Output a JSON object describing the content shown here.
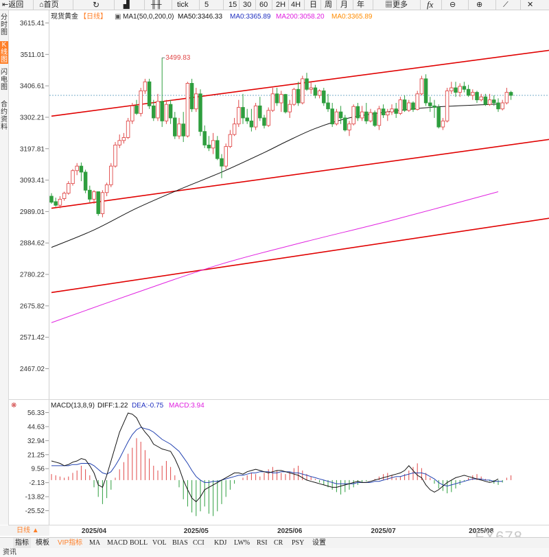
{
  "toolbar": {
    "back": "返回",
    "home": "首页",
    "period_5": "5",
    "period_15": "15",
    "period_30": "30",
    "period_60": "60",
    "period_2h": "2H",
    "period_4h": "4H",
    "day": "日",
    "week": "周",
    "month": "月",
    "year": "年",
    "more": "更多",
    "tick": "tick"
  },
  "sidebar": {
    "tab1": "分时图",
    "tab2": "K线图",
    "tab3": "闪电图",
    "tab4": "合约资料"
  },
  "header": {
    "symbol": "现货黄金",
    "period": "【日线】",
    "ma_params": "MA1(50,0,200,0)",
    "ma50": "MA50:3346.33",
    "ma0a": "MA0:3365.89",
    "ma200": "MA200:3058.20",
    "ma0b": "MA0:3365.89"
  },
  "macd_header": {
    "title": "MACD(13,8,9)",
    "diff": "DIFF:1.22",
    "dea": "DEA:-0.75",
    "macd": "MACD:3.94"
  },
  "annotation": {
    "high_label": "3499.83"
  },
  "bottom": {
    "period_btn": "日线 ▲",
    "tabs": [
      "指标",
      "模板",
      "VIP指标",
      "MA",
      "MACD",
      "BOLL",
      "VOL",
      "BIAS",
      "CCI",
      "KDJ",
      "LW%",
      "RSI",
      "CR",
      "PSY",
      "设置"
    ]
  },
  "watermark": "FX678",
  "footer": {
    "label": "资讯"
  },
  "colors": {
    "up": "#e04848",
    "down": "#2e9e3e",
    "trend": "#e00000",
    "ma50": "#111111",
    "ma200": "#e020e0",
    "diff": "#111111",
    "dea": "#2040b0",
    "accent": "#ff7f27"
  },
  "chart_data": [
    {
      "type": "candlestick",
      "title": "现货黄金【日线】",
      "y_ticks": [
        "3615.41",
        "3511.01",
        "3406.61",
        "3302.21",
        "3197.81",
        "3093.41",
        "2989.01",
        "2884.62",
        "2780.22",
        "2675.82",
        "2571.42",
        "2467.02"
      ],
      "ylim": [
        2430,
        3640
      ],
      "x_ticks": [
        "2025/04",
        "2025/05",
        "2025/06",
        "2025/07",
        "2025/08"
      ],
      "x_tick_index": [
        10,
        34,
        56,
        78,
        101
      ],
      "last_price": 3375,
      "high_annotation": {
        "index": 26,
        "value": 3499.83
      },
      "candles": [
        [
          3040,
          3050,
          3020,
          3015
        ],
        [
          3022,
          3035,
          3010,
          3005
        ],
        [
          3010,
          3040,
          3030,
          3000
        ],
        [
          3032,
          3055,
          3050,
          3025
        ],
        [
          3050,
          3090,
          3082,
          3045
        ],
        [
          3082,
          3130,
          3125,
          3075
        ],
        [
          3125,
          3150,
          3140,
          3110
        ],
        [
          3140,
          3152,
          3120,
          3090
        ],
        [
          3120,
          3128,
          3060,
          3050
        ],
        [
          3060,
          3075,
          3030,
          3020
        ],
        [
          3030,
          3060,
          3055,
          3015
        ],
        [
          3055,
          3045,
          2982,
          2975
        ],
        [
          2982,
          3060,
          3052,
          2970
        ],
        [
          3052,
          3085,
          3078,
          3040
        ],
        [
          3078,
          3150,
          3140,
          3070
        ],
        [
          3140,
          3220,
          3210,
          3135
        ],
        [
          3210,
          3245,
          3225,
          3200
        ],
        [
          3225,
          3250,
          3235,
          3215
        ],
        [
          3235,
          3300,
          3290,
          3230
        ],
        [
          3290,
          3350,
          3340,
          3280
        ],
        [
          3340,
          3360,
          3315,
          3310
        ],
        [
          3315,
          3400,
          3390,
          3305
        ],
        [
          3390,
          3430,
          3420,
          3380
        ],
        [
          3420,
          3430,
          3340,
          3330
        ],
        [
          3340,
          3360,
          3300,
          3290
        ],
        [
          3300,
          3380,
          3355,
          3290
        ],
        [
          3355,
          3499.8,
          3290,
          3270
        ],
        [
          3290,
          3360,
          3345,
          3280
        ],
        [
          3345,
          3360,
          3300,
          3280
        ],
        [
          3300,
          3320,
          3240,
          3230
        ],
        [
          3240,
          3300,
          3280,
          3230
        ],
        [
          3280,
          3320,
          3240,
          3220
        ],
        [
          3240,
          3420,
          3415,
          3235
        ],
        [
          3415,
          3430,
          3330,
          3320
        ],
        [
          3330,
          3400,
          3380,
          3320
        ],
        [
          3380,
          3395,
          3255,
          3240
        ],
        [
          3255,
          3275,
          3210,
          3200
        ],
        [
          3210,
          3240,
          3200,
          3190
        ],
        [
          3200,
          3250,
          3225,
          3180
        ],
        [
          3225,
          3240,
          3165,
          3160
        ],
        [
          3165,
          3180,
          3140,
          3100
        ],
        [
          3140,
          3215,
          3205,
          3130
        ],
        [
          3205,
          3260,
          3245,
          3200
        ],
        [
          3245,
          3300,
          3280,
          3240
        ],
        [
          3280,
          3360,
          3335,
          3270
        ],
        [
          3335,
          3380,
          3300,
          3280
        ],
        [
          3300,
          3330,
          3290,
          3280
        ],
        [
          3290,
          3330,
          3270,
          3255
        ],
        [
          3270,
          3350,
          3340,
          3260
        ],
        [
          3340,
          3370,
          3300,
          3290
        ],
        [
          3300,
          3310,
          3275,
          3265
        ],
        [
          3275,
          3335,
          3325,
          3270
        ],
        [
          3325,
          3400,
          3380,
          3320
        ],
        [
          3380,
          3400,
          3350,
          3340
        ],
        [
          3350,
          3390,
          3378,
          3320
        ],
        [
          3378,
          3380,
          3320,
          3315
        ],
        [
          3320,
          3360,
          3345,
          3300
        ],
        [
          3345,
          3400,
          3395,
          3340
        ],
        [
          3395,
          3420,
          3350,
          3340
        ],
        [
          3350,
          3440,
          3430,
          3345
        ],
        [
          3430,
          3450,
          3395,
          3390
        ],
        [
          3395,
          3420,
          3400,
          3380
        ],
        [
          3400,
          3410,
          3375,
          3365
        ],
        [
          3375,
          3395,
          3390,
          3365
        ],
        [
          3390,
          3400,
          3350,
          3340
        ],
        [
          3350,
          3380,
          3330,
          3320
        ],
        [
          3330,
          3350,
          3280,
          3270
        ],
        [
          3280,
          3330,
          3320,
          3275
        ],
        [
          3320,
          3340,
          3300,
          3280
        ],
        [
          3300,
          3310,
          3260,
          3255
        ],
        [
          3260,
          3290,
          3280,
          3240
        ],
        [
          3280,
          3345,
          3338,
          3275
        ],
        [
          3338,
          3350,
          3300,
          3290
        ],
        [
          3300,
          3340,
          3320,
          3290
        ],
        [
          3320,
          3350,
          3290,
          3280
        ],
        [
          3290,
          3330,
          3318,
          3285
        ],
        [
          3318,
          3325,
          3275,
          3270
        ],
        [
          3275,
          3340,
          3330,
          3260
        ],
        [
          3330,
          3345,
          3310,
          3300
        ],
        [
          3310,
          3330,
          3320,
          3290
        ],
        [
          3320,
          3345,
          3330,
          3310
        ],
        [
          3330,
          3350,
          3315,
          3300
        ],
        [
          3315,
          3370,
          3360,
          3310
        ],
        [
          3360,
          3375,
          3325,
          3320
        ],
        [
          3325,
          3360,
          3350,
          3320
        ],
        [
          3350,
          3355,
          3328,
          3320
        ],
        [
          3328,
          3390,
          3380,
          3325
        ],
        [
          3380,
          3440,
          3430,
          3375
        ],
        [
          3430,
          3445,
          3350,
          3340
        ],
        [
          3350,
          3370,
          3340,
          3320
        ],
        [
          3340,
          3360,
          3335,
          3300
        ],
        [
          3335,
          3345,
          3270,
          3265
        ],
        [
          3270,
          3300,
          3290,
          3260
        ],
        [
          3290,
          3400,
          3390,
          3285
        ],
        [
          3390,
          3420,
          3400,
          3380
        ],
        [
          3400,
          3420,
          3385,
          3370
        ],
        [
          3385,
          3415,
          3405,
          3370
        ],
        [
          3405,
          3420,
          3395,
          3385
        ],
        [
          3395,
          3410,
          3375,
          3370
        ],
        [
          3375,
          3395,
          3385,
          3360
        ],
        [
          3385,
          3390,
          3360,
          3350
        ],
        [
          3360,
          3380,
          3370,
          3355
        ],
        [
          3370,
          3380,
          3345,
          3340
        ],
        [
          3345,
          3380,
          3360,
          3340
        ],
        [
          3360,
          3375,
          3350,
          3340
        ],
        [
          3350,
          3365,
          3330,
          3320
        ],
        [
          3330,
          3360,
          3350,
          3325
        ],
        [
          3350,
          3400,
          3385,
          3345
        ],
        [
          3385,
          3390,
          3375,
          3360
        ]
      ],
      "ma50": [
        [
          0,
          2870
        ],
        [
          10,
          2928
        ],
        [
          20,
          3000
        ],
        [
          30,
          3062
        ],
        [
          40,
          3120
        ],
        [
          50,
          3185
        ],
        [
          55,
          3220
        ],
        [
          62,
          3265
        ],
        [
          70,
          3300
        ],
        [
          80,
          3322
        ],
        [
          90,
          3336
        ],
        [
          105,
          3346
        ]
      ],
      "ma200": [
        [
          0,
          2620
        ],
        [
          20,
          2720
        ],
        [
          40,
          2815
        ],
        [
          60,
          2890
        ],
        [
          80,
          2960
        ],
        [
          105,
          3055
        ]
      ],
      "trendlines": [
        {
          "from": [
            0,
            3306
          ],
          "to": [
            128,
            3545
          ]
        },
        {
          "from": [
            0,
            3000
          ],
          "to": [
            128,
            3250
          ]
        },
        {
          "from": [
            0,
            2720
          ],
          "to": [
            128,
            2990
          ]
        }
      ]
    },
    {
      "type": "macd",
      "title": "MACD(13,8,9)",
      "y_ticks": [
        "56.33",
        "44.63",
        "32.94",
        "21.25",
        "9.56",
        "-2.13",
        "-13.82",
        "-25.52"
      ],
      "ylim": [
        -33,
        60
      ],
      "hist": [
        5,
        4,
        3,
        2,
        3,
        6,
        8,
        12,
        9,
        4,
        -6,
        -14,
        -20,
        -15,
        -8,
        2,
        9,
        15,
        22,
        27,
        35,
        32,
        25,
        18,
        12,
        8,
        12,
        16,
        11,
        4,
        -6,
        -16,
        -22,
        -27,
        -30,
        -26,
        -22,
        -28,
        -30,
        -26,
        -20,
        -14,
        -8,
        -3,
        0,
        2,
        4,
        6,
        5,
        3,
        6,
        9,
        11,
        8,
        6,
        5,
        7,
        10,
        12,
        8,
        5,
        3,
        1,
        -2,
        -4,
        -6,
        -8,
        -10,
        -12,
        -10,
        -8,
        -6,
        -4,
        -2,
        -1,
        0,
        1,
        3,
        5,
        6,
        4,
        2,
        3,
        5,
        8,
        11,
        14,
        10,
        6,
        2,
        -3,
        -7,
        -9,
        -11,
        -10,
        -7,
        -4,
        -1,
        2,
        4,
        5,
        3,
        1,
        -1,
        -3,
        -4,
        -2,
        2,
        4
      ],
      "diff": [
        16,
        15,
        14,
        12,
        13,
        15,
        16,
        18,
        17,
        12,
        6,
        -4,
        -6,
        4,
        16,
        28,
        40,
        48,
        56,
        55,
        52,
        45,
        40,
        36,
        30,
        28,
        26,
        25,
        24,
        18,
        10,
        0,
        -8,
        -15,
        -18,
        -14,
        -8,
        -6,
        -4,
        -2,
        0,
        2,
        4,
        6,
        6,
        5,
        7,
        8,
        9,
        8,
        7,
        6,
        7,
        8,
        8,
        7,
        6,
        5,
        4,
        2,
        0,
        -1,
        -2,
        -3,
        -4,
        -5,
        -6,
        -6,
        -5,
        -4,
        -3,
        -2,
        -1,
        -2,
        -2,
        -1,
        0,
        1,
        2,
        3,
        4,
        5,
        6,
        8,
        12,
        8,
        4,
        2,
        -4,
        -8,
        -10,
        -8,
        -5,
        -2,
        0,
        2,
        3,
        4,
        3,
        2,
        1,
        0,
        -1,
        -2,
        -1,
        1
      ],
      "dea": [
        12,
        12,
        12,
        12,
        12,
        13,
        13,
        14,
        14,
        14,
        12,
        9,
        6,
        5,
        7,
        12,
        18,
        25,
        32,
        38,
        42,
        44,
        43,
        42,
        40,
        37,
        34,
        32,
        30,
        27,
        24,
        19,
        14,
        8,
        3,
        0,
        -2,
        -2,
        -1,
        -1,
        0,
        1,
        2,
        3,
        4,
        4,
        5,
        6,
        6,
        7,
        7,
        7,
        6,
        6,
        7,
        7,
        7,
        6,
        6,
        5,
        4,
        3,
        2,
        1,
        0,
        -1,
        -2,
        -3,
        -3,
        -3,
        -3,
        -3,
        -2,
        -2,
        -2,
        -2,
        -1,
        -1,
        0,
        1,
        2,
        3,
        3,
        4,
        5,
        6,
        6,
        6,
        5,
        3,
        1,
        -2,
        -4,
        -5,
        -4,
        -3,
        -2,
        -1,
        0,
        1,
        1,
        1,
        0,
        0,
        -1,
        -1,
        -1
      ]
    }
  ]
}
